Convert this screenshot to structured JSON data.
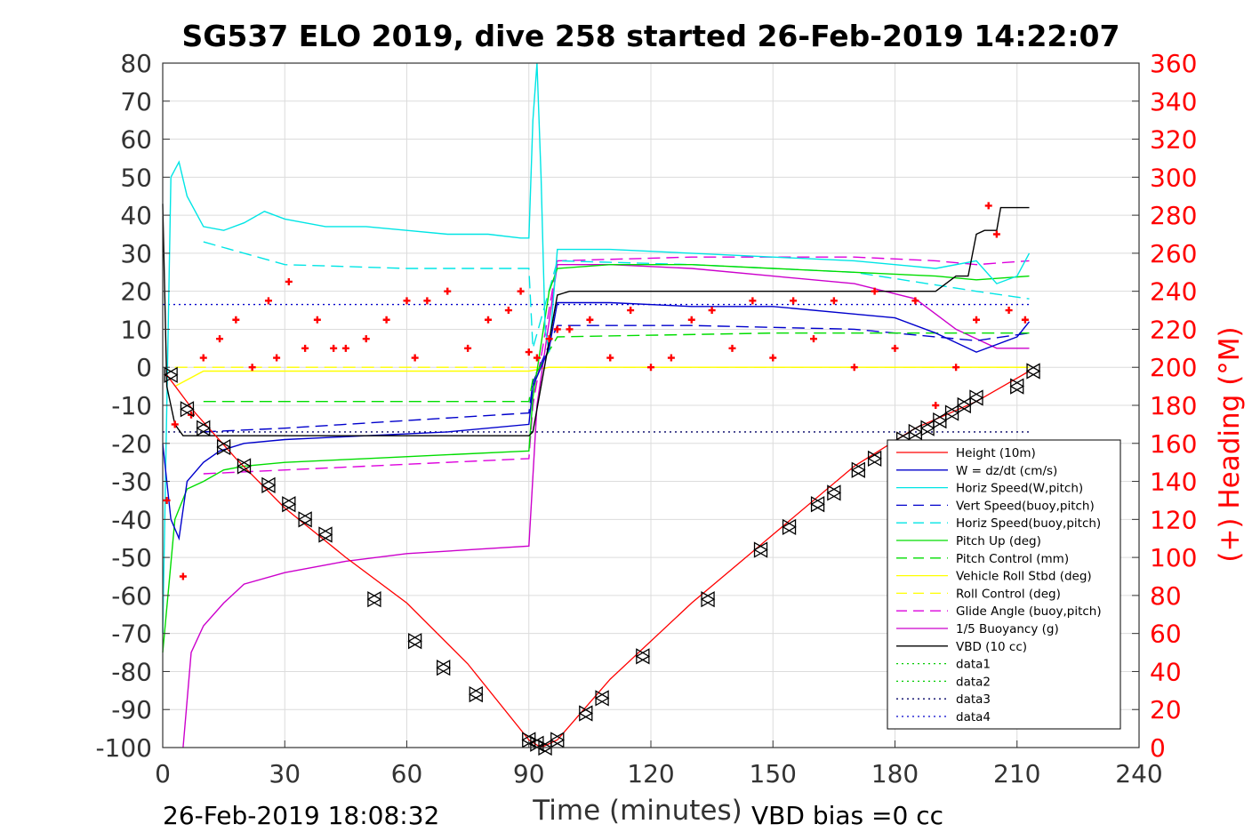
{
  "chart_data": {
    "type": "line",
    "title": "SG537 ELO 2019, dive 258 started 26-Feb-2019 14:22:07",
    "xlabel": "Time (minutes)",
    "ylabel": "",
    "y2label": "(+) Heading (°M)",
    "xlim": [
      0,
      240
    ],
    "ylim": [
      -100,
      80
    ],
    "y2lim": [
      0,
      360
    ],
    "xticks": [
      "0",
      "30",
      "60",
      "90",
      "120",
      "150",
      "180",
      "210",
      "240"
    ],
    "yticks": [
      "80",
      "70",
      "60",
      "50",
      "40",
      "30",
      "20",
      "10",
      "0",
      "-10",
      "-20",
      "-30",
      "-40",
      "-50",
      "-60",
      "-70",
      "-80",
      "-90",
      "-100"
    ],
    "y2ticks": [
      "360",
      "340",
      "320",
      "300",
      "280",
      "260",
      "240",
      "220",
      "200",
      "180",
      "160",
      "140",
      "120",
      "100",
      "80",
      "60",
      "40",
      "20",
      "0"
    ],
    "grid": true,
    "legend_position": "bottom-right",
    "footer_left": "26-Feb-2019 18:08:32",
    "footer_right": "VBD bias =0 cc",
    "colors": {
      "height": "#ff0000",
      "w": "#0000cc",
      "horiz": "#00e5e5",
      "pitch": "#00dd00",
      "roll": "#ffff00",
      "glide": "#dd00dd",
      "buoy": "#cc00cc",
      "vbd": "#000000",
      "data": "#00aa00",
      "data3": "#000066",
      "heading": "#ff0000"
    },
    "series": [
      {
        "key": "height",
        "name": "Height (10m)",
        "style": "solid",
        "color": "#ff0000",
        "x": [
          1,
          8,
          18,
          30,
          45,
          60,
          75,
          90,
          93,
          97,
          110,
          130,
          150,
          170,
          185,
          200,
          213
        ],
        "y": [
          -2,
          -12,
          -24,
          -37,
          -50,
          -62,
          -78,
          -98,
          -100,
          -98,
          -82,
          -62,
          -44,
          -26,
          -16,
          -9,
          -1
        ]
      },
      {
        "key": "w",
        "name": "W = dz/dt (cm/s)",
        "style": "solid",
        "color": "#0000cc",
        "x": [
          0,
          2,
          4,
          6,
          10,
          14,
          20,
          30,
          50,
          70,
          90,
          91,
          95,
          97,
          110,
          130,
          150,
          170,
          180,
          190,
          200,
          210,
          213
        ],
        "y": [
          -20,
          -40,
          -45,
          -30,
          -25,
          -22,
          -20,
          -19,
          -18,
          -17,
          -15,
          -5,
          5,
          17,
          17,
          16,
          16,
          14,
          13,
          9,
          4,
          8,
          12
        ]
      },
      {
        "key": "horiz",
        "name": "Horiz Speed(W,pitch)",
        "style": "solid",
        "color": "#00e5e5",
        "x": [
          0,
          2,
          4,
          6,
          10,
          15,
          20,
          25,
          30,
          40,
          50,
          60,
          70,
          80,
          88,
          90,
          91,
          92,
          93,
          94,
          95,
          97,
          110,
          130,
          150,
          170,
          180,
          190,
          200,
          205,
          210,
          213
        ],
        "y": [
          -70,
          50,
          54,
          45,
          37,
          36,
          38,
          41,
          39,
          37,
          37,
          36,
          35,
          35,
          34,
          34,
          65,
          80,
          50,
          10,
          4,
          31,
          31,
          30,
          29,
          28,
          27,
          26,
          28,
          22,
          24,
          30
        ]
      },
      {
        "key": "vertb",
        "name": "Vert Speed(buoy,pitch)",
        "style": "dash",
        "color": "#0000cc",
        "x": [
          10,
          30,
          60,
          90,
          91,
          97,
          130,
          170,
          200,
          213
        ],
        "y": [
          -17,
          -16,
          -14,
          -12,
          -4,
          11,
          11,
          10,
          7,
          9
        ]
      },
      {
        "key": "horizb",
        "name": "Horiz Speed(buoy,pitch)",
        "style": "dash",
        "color": "#00e5e5",
        "x": [
          10,
          30,
          60,
          90,
          91,
          97,
          130,
          170,
          200,
          213
        ],
        "y": [
          33,
          27,
          26,
          26,
          5,
          28,
          27,
          25,
          20,
          18
        ]
      },
      {
        "key": "pitch",
        "name": "Pitch Up (deg)",
        "style": "solid",
        "color": "#00dd00",
        "x": [
          0,
          3,
          6,
          10,
          15,
          20,
          30,
          50,
          70,
          90,
          91,
          95,
          97,
          110,
          130,
          150,
          170,
          190,
          200,
          213
        ],
        "y": [
          -75,
          -40,
          -32,
          -30,
          -27,
          -26,
          -25,
          -24,
          -23,
          -22,
          -8,
          20,
          26,
          27,
          27,
          26,
          25,
          24,
          23,
          24
        ]
      },
      {
        "key": "pitchc",
        "name": "Pitch Control (mm)",
        "style": "dash",
        "color": "#00dd00",
        "x": [
          10,
          90,
          91,
          97,
          150,
          200,
          213
        ],
        "y": [
          -9,
          -9,
          -3,
          8,
          9,
          9,
          9
        ]
      },
      {
        "key": "roll",
        "name": "Vehicle Roll Stbd (deg)",
        "style": "solid",
        "color": "#ffff00",
        "x": [
          3,
          10,
          30,
          60,
          90,
          95,
          120,
          150,
          180,
          213
        ],
        "y": [
          -5,
          -1,
          -1,
          -1,
          -1,
          0,
          0,
          0,
          0,
          0
        ]
      },
      {
        "key": "rollc",
        "name": "Roll Control (deg)",
        "style": "dash",
        "color": "#ffff00",
        "x": [
          3,
          213
        ],
        "y": [
          0,
          0
        ]
      },
      {
        "key": "glide",
        "name": "Glide Angle (buoy,pitch)",
        "style": "dash",
        "color": "#dd00dd",
        "x": [
          10,
          90,
          91,
          97,
          130,
          170,
          190,
          200,
          213
        ],
        "y": [
          -28,
          -24,
          -10,
          28,
          29,
          29,
          28,
          27,
          28
        ]
      },
      {
        "key": "buoy",
        "name": "1/5 Buoyancy (g)",
        "style": "solid",
        "color": "#cc00cc",
        "x": [
          5,
          7,
          10,
          15,
          20,
          30,
          45,
          60,
          75,
          90,
          92,
          97,
          110,
          130,
          150,
          170,
          185,
          195,
          205,
          213
        ],
        "y": [
          -100,
          -75,
          -68,
          -62,
          -57,
          -54,
          -51,
          -49,
          -48,
          -47,
          -10,
          27,
          27,
          26,
          24,
          22,
          18,
          10,
          5,
          5
        ]
      },
      {
        "key": "vbd",
        "name": "VBD (10 cc)",
        "style": "solid",
        "color": "#000000",
        "x": [
          0,
          1,
          3,
          5,
          90,
          91,
          97,
          100,
          171,
          172,
          182,
          190,
          195,
          198,
          200,
          202,
          205,
          206,
          210,
          213
        ],
        "y": [
          43,
          -5,
          -15,
          -18,
          -18,
          -17,
          19,
          20,
          20,
          20,
          20,
          20,
          24,
          24,
          35,
          36,
          36,
          42,
          42,
          42
        ]
      },
      {
        "key": "data1",
        "name": "data1",
        "style": "dot",
        "color": "#00cc00",
        "x": [],
        "y": []
      },
      {
        "key": "data2",
        "name": "data2",
        "style": "dot",
        "color": "#00cc00",
        "x": [],
        "y": []
      },
      {
        "key": "data3",
        "name": "data3",
        "style": "dot",
        "color": "#000066",
        "x": [
          0,
          213
        ],
        "y": [
          -17,
          -17
        ]
      },
      {
        "key": "data4",
        "name": "data4",
        "style": "dot",
        "color": "#0000cc",
        "x": [
          0,
          213
        ],
        "y": [
          16.5,
          16.5
        ]
      }
    ],
    "heading": {
      "axis": "right",
      "x": [
        1,
        3,
        5,
        7,
        10,
        14,
        18,
        22,
        26,
        28,
        31,
        35,
        38,
        42,
        45,
        50,
        55,
        60,
        62,
        65,
        70,
        75,
        80,
        85,
        88,
        90,
        92,
        95,
        97,
        100,
        105,
        110,
        115,
        120,
        125,
        130,
        135,
        140,
        145,
        150,
        155,
        160,
        165,
        170,
        175,
        180,
        185,
        190,
        195,
        200,
        203,
        205,
        208,
        212
      ],
      "y": [
        130,
        170,
        90,
        175,
        205,
        215,
        225,
        200,
        235,
        205,
        245,
        210,
        225,
        210,
        210,
        215,
        225,
        235,
        205,
        235,
        240,
        210,
        225,
        230,
        240,
        208,
        205,
        215,
        220,
        220,
        225,
        205,
        230,
        200,
        205,
        225,
        230,
        210,
        235,
        205,
        235,
        215,
        235,
        200,
        240,
        210,
        235,
        180,
        200,
        225,
        285,
        270,
        230,
        225
      ]
    },
    "markers": {
      "symbol": "triangle",
      "x": [
        2,
        6,
        10,
        15,
        20,
        26,
        31,
        35,
        40,
        52,
        62,
        69,
        77,
        90,
        92,
        94,
        97,
        104,
        108,
        118,
        134,
        147,
        154,
        161,
        165,
        171,
        175,
        182,
        185,
        188,
        191,
        194,
        197,
        200,
        210,
        214
      ],
      "y": [
        -2,
        -11,
        -16,
        -21,
        -26,
        -31,
        -36,
        -40,
        -44,
        -61,
        -72,
        -79,
        -86,
        -98,
        -99,
        -100,
        -98,
        -91,
        -87,
        -76,
        -61,
        -48,
        -42,
        -36,
        -33,
        -27,
        -24,
        -19,
        -17,
        -16,
        -14,
        -12,
        -10,
        -8,
        -5,
        -1
      ]
    }
  }
}
